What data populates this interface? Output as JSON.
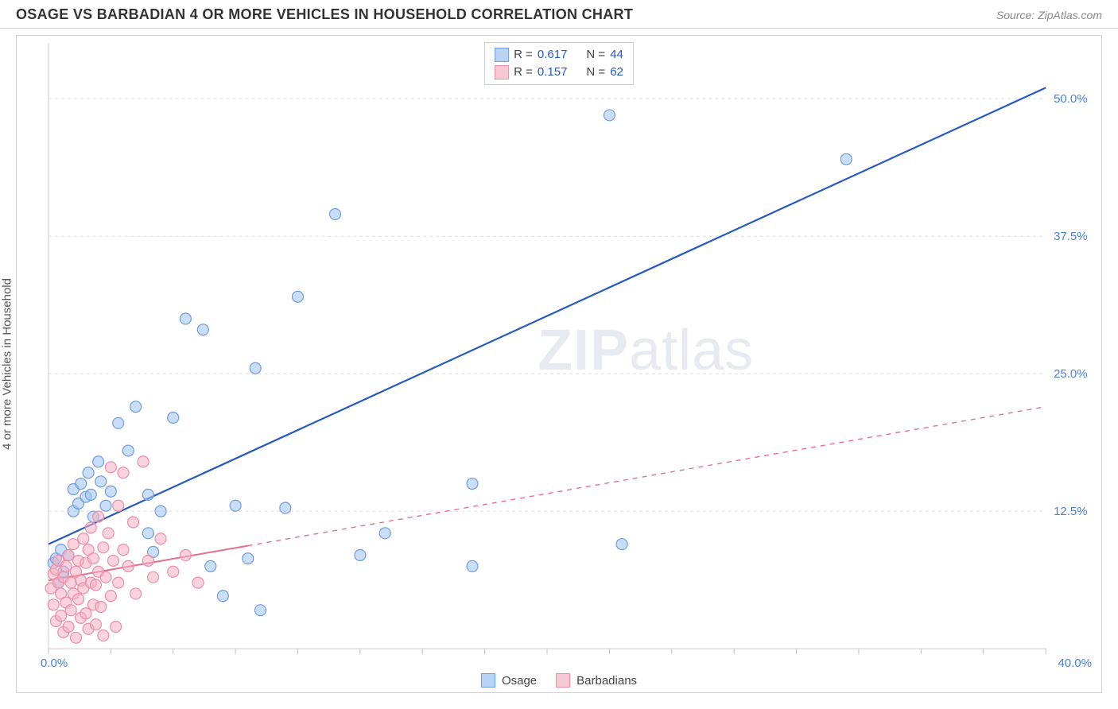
{
  "header": {
    "title": "OSAGE VS BARBADIAN 4 OR MORE VEHICLES IN HOUSEHOLD CORRELATION CHART",
    "source": "Source: ZipAtlas.com"
  },
  "chart": {
    "type": "scatter",
    "ylabel": "4 or more Vehicles in Household",
    "watermark": "ZIPatlas",
    "background_color": "#ffffff",
    "grid_color": "#dcdcdc",
    "axis_color": "#cccccc",
    "tick_color": "#bfbfbf",
    "axis_label_color": "#4a7fd8",
    "text_color": "#555555",
    "title_fontsize": 18,
    "label_fontsize": 15,
    "tick_fontsize": 15,
    "xlim": [
      0,
      40
    ],
    "ylim": [
      0,
      55
    ],
    "x_axis": {
      "label_min": "0.0%",
      "label_max": "40.0%",
      "ticks_minor": [
        0,
        2.5,
        5,
        7.5,
        10,
        12.5,
        15,
        17.5,
        20,
        22.5,
        25,
        27.5,
        30,
        32.5,
        35,
        37.5,
        40
      ]
    },
    "y_axis": {
      "gridlines": [
        {
          "value": 12.5,
          "label": "12.5%"
        },
        {
          "value": 25.0,
          "label": "25.0%"
        },
        {
          "value": 37.5,
          "label": "37.5%"
        },
        {
          "value": 50.0,
          "label": "50.0%"
        }
      ]
    },
    "legend_top": {
      "rows": [
        {
          "swatch_fill": "#b9d3f3",
          "swatch_border": "#6d9de0",
          "r_label": "R =",
          "r_value": "0.617",
          "n_label": "N =",
          "n_value": "44"
        },
        {
          "swatch_fill": "#f7c9d4",
          "swatch_border": "#e98fa6",
          "r_label": "R =",
          "r_value": "0.157",
          "n_label": "N =",
          "n_value": "62"
        }
      ]
    },
    "legend_bottom": {
      "items": [
        {
          "swatch_fill": "#b9d3f3",
          "swatch_border": "#6d9de0",
          "label": "Osage"
        },
        {
          "swatch_fill": "#f7c9d4",
          "swatch_border": "#e98fa6",
          "label": "Barbadians"
        }
      ]
    },
    "series": [
      {
        "name": "Osage",
        "marker_fill": "rgba(160,195,240,0.55)",
        "marker_stroke": "#6d9de0",
        "marker_radius": 7,
        "trend": {
          "x0": 0,
          "y0": 9.5,
          "x1": 40,
          "y1": 51,
          "color": "#2659c4",
          "width": 2.2,
          "dash": "",
          "solid_until_x": 40
        },
        "points": [
          [
            0.2,
            7.8
          ],
          [
            0.3,
            8.2
          ],
          [
            0.4,
            6.0
          ],
          [
            0.5,
            9.0
          ],
          [
            0.6,
            7.0
          ],
          [
            0.8,
            8.5
          ],
          [
            1.0,
            12.5
          ],
          [
            1.0,
            14.5
          ],
          [
            1.2,
            13.2
          ],
          [
            1.3,
            15.0
          ],
          [
            1.5,
            13.8
          ],
          [
            1.6,
            16.0
          ],
          [
            1.7,
            14.0
          ],
          [
            1.8,
            12.0
          ],
          [
            2.0,
            17.0
          ],
          [
            2.1,
            15.2
          ],
          [
            2.3,
            13.0
          ],
          [
            2.5,
            14.3
          ],
          [
            2.8,
            20.5
          ],
          [
            3.2,
            18.0
          ],
          [
            3.5,
            22.0
          ],
          [
            4.0,
            10.5
          ],
          [
            4.0,
            14.0
          ],
          [
            4.2,
            8.8
          ],
          [
            4.5,
            12.5
          ],
          [
            5.0,
            21.0
          ],
          [
            5.5,
            30.0
          ],
          [
            6.2,
            29.0
          ],
          [
            6.5,
            7.5
          ],
          [
            7.0,
            4.8
          ],
          [
            7.5,
            13.0
          ],
          [
            8.0,
            8.2
          ],
          [
            8.3,
            25.5
          ],
          [
            8.5,
            3.5
          ],
          [
            9.5,
            12.8
          ],
          [
            10.0,
            32.0
          ],
          [
            11.5,
            39.5
          ],
          [
            12.5,
            8.5
          ],
          [
            13.5,
            10.5
          ],
          [
            17.0,
            15.0
          ],
          [
            17.0,
            7.5
          ],
          [
            22.5,
            48.5
          ],
          [
            23.0,
            9.5
          ],
          [
            32.0,
            44.5
          ]
        ]
      },
      {
        "name": "Barbadians",
        "marker_fill": "rgba(245,175,195,0.55)",
        "marker_stroke": "#e98fa6",
        "marker_radius": 7,
        "trend": {
          "x0": 0,
          "y0": 6.2,
          "x1": 40,
          "y1": 22.0,
          "color": "#e76f8e",
          "width": 2.0,
          "dash": "6,6",
          "solid_until_x": 8
        },
        "points": [
          [
            0.1,
            5.5
          ],
          [
            0.2,
            6.8
          ],
          [
            0.2,
            4.0
          ],
          [
            0.3,
            7.2
          ],
          [
            0.3,
            2.5
          ],
          [
            0.4,
            6.0
          ],
          [
            0.4,
            8.0
          ],
          [
            0.5,
            3.0
          ],
          [
            0.5,
            5.0
          ],
          [
            0.6,
            6.5
          ],
          [
            0.6,
            1.5
          ],
          [
            0.7,
            7.5
          ],
          [
            0.7,
            4.2
          ],
          [
            0.8,
            2.0
          ],
          [
            0.8,
            8.5
          ],
          [
            0.9,
            6.0
          ],
          [
            0.9,
            3.5
          ],
          [
            1.0,
            5.0
          ],
          [
            1.0,
            9.5
          ],
          [
            1.1,
            7.0
          ],
          [
            1.1,
            1.0
          ],
          [
            1.2,
            4.5
          ],
          [
            1.2,
            8.0
          ],
          [
            1.3,
            6.2
          ],
          [
            1.3,
            2.8
          ],
          [
            1.4,
            10.0
          ],
          [
            1.4,
            5.5
          ],
          [
            1.5,
            7.8
          ],
          [
            1.5,
            3.2
          ],
          [
            1.6,
            9.0
          ],
          [
            1.6,
            1.8
          ],
          [
            1.7,
            6.0
          ],
          [
            1.7,
            11.0
          ],
          [
            1.8,
            4.0
          ],
          [
            1.8,
            8.2
          ],
          [
            1.9,
            5.8
          ],
          [
            1.9,
            2.2
          ],
          [
            2.0,
            7.0
          ],
          [
            2.0,
            12.0
          ],
          [
            2.1,
            3.8
          ],
          [
            2.2,
            9.2
          ],
          [
            2.2,
            1.2
          ],
          [
            2.3,
            6.5
          ],
          [
            2.4,
            10.5
          ],
          [
            2.5,
            4.8
          ],
          [
            2.5,
            16.5
          ],
          [
            2.6,
            8.0
          ],
          [
            2.7,
            2.0
          ],
          [
            2.8,
            13.0
          ],
          [
            2.8,
            6.0
          ],
          [
            3.0,
            16.0
          ],
          [
            3.0,
            9.0
          ],
          [
            3.2,
            7.5
          ],
          [
            3.4,
            11.5
          ],
          [
            3.5,
            5.0
          ],
          [
            3.8,
            17.0
          ],
          [
            4.0,
            8.0
          ],
          [
            4.2,
            6.5
          ],
          [
            4.5,
            10.0
          ],
          [
            5.0,
            7.0
          ],
          [
            5.5,
            8.5
          ],
          [
            6.0,
            6.0
          ]
        ]
      }
    ]
  }
}
